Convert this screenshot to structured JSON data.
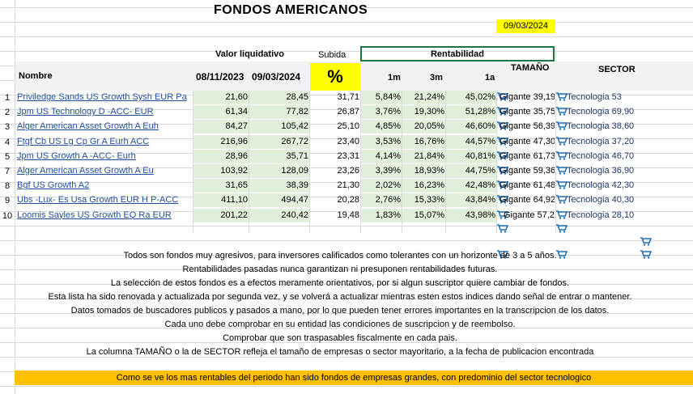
{
  "title": "FONDOS  AMERICANOS",
  "date": "09/03/2024",
  "headers": {
    "valor_liquidativo": "Valor liquidativo",
    "subida": "Subida",
    "rentabilidad": "Rentabilidad",
    "tamano": "TAMAÑO",
    "sector": "SECTOR",
    "nombre": "Nombre",
    "fecha1": "08/11/2023",
    "fecha2": "09/03/2024",
    "pct": "%",
    "m1": "1m",
    "m3": "3m",
    "a1": "1a"
  },
  "rows": [
    {
      "num": "1",
      "name": "Priviledge Sands US Growth Sysh EUR Pa",
      "v1": "21,60",
      "v2": "28,45",
      "sub": "31,71",
      "r1m": "5,84%",
      "r3m": "21,24%",
      "r1a": "45,02%",
      "tam": "Gigante 39,19",
      "sec": "Tecnologia 53"
    },
    {
      "num": "2",
      "name": "Jpm US Technology D -ACC- EUR",
      "v1": "61,34",
      "v2": "77,82",
      "sub": "26,87",
      "r1m": "3,76%",
      "r3m": "19,30%",
      "r1a": "51,28%",
      "tam": "Gigante 35,75",
      "sec": "Tecnologia 69,90"
    },
    {
      "num": "3",
      "name": "Alger American Asset Growth A Euh",
      "v1": "84,27",
      "v2": "105,42",
      "sub": "25,10",
      "r1m": "4,85%",
      "r3m": "20,05%",
      "r1a": "46,60%",
      "tam": "Gigante 56,39",
      "sec": "Tecnologia 38,60"
    },
    {
      "num": "4",
      "name": "Ftgf Cb US Lg Cp Gr A Eurh ACC",
      "v1": "216,96",
      "v2": "267,72",
      "sub": "23,40",
      "r1m": "3,53%",
      "r3m": "16,76%",
      "r1a": "44,57%",
      "tam": "Gigante 47,30",
      "sec": "Tecnologia 37,20"
    },
    {
      "num": "5",
      "name": "Jpm US Growth A -ACC- Eurh",
      "v1": "28,96",
      "v2": "35,71",
      "sub": "23,31",
      "r1m": "4,14%",
      "r3m": "21,84%",
      "r1a": "40,81%",
      "tam": "Gigante 61,73",
      "sec": "Tecnologia 46,70"
    },
    {
      "num": "7",
      "name": "Alger American Asset Growth A Eu",
      "v1": "103,92",
      "v2": "128,09",
      "sub": "23,26",
      "r1m": "3,39%",
      "r3m": "18,93%",
      "r1a": "44,75%",
      "tam": "Gigante 59,36",
      "sec": "Tecnologia 36,90"
    },
    {
      "num": "8",
      "name": "Bgf US Growth A2",
      "v1": "31,65",
      "v2": "38,39",
      "sub": "21,30",
      "r1m": "2,02%",
      "r3m": "16,23%",
      "r1a": "42,48%",
      "tam": "Gigante 61,48",
      "sec": "Tecnologia 42,30"
    },
    {
      "num": "9",
      "name": "Ubs -Lux- Es Usa Growth EUR H P-ACC",
      "v1": "411,10",
      "v2": "494,47",
      "sub": "20,28",
      "r1m": "2,76%",
      "r3m": "15,33%",
      "r1a": "43,84%",
      "tam": "Gigante 64,92",
      "sec": "Tecnologia 40,30"
    },
    {
      "num": "10",
      "name": "Loomis Sayles US Growth EQ Ra EUR",
      "v1": "201,22",
      "v2": "240,42",
      "sub": "19,48",
      "r1m": "1,83%",
      "r3m": "15,07%",
      "r1a": "43,98%",
      "tam": "Gigante 57,2",
      "sec": "Tecnologia 28,10"
    }
  ],
  "notes": [
    "Todos son fondos muy agresivos, para inversores calificados como tolerantes con un horizonte de 3 a 5 años.",
    "Rentabilidades pasadas nunca garantizan ni presuponen rentabilidades futuras.",
    "La selección de estos fondos es a efectos meramente orientativos, por si algun suscriptor quiere cambiar de fondos.",
    "Esta lista ha sido renovada y actualizada por segunda vez, y se volverá a actualizar mientras esten estos indices dando señal de entrar o mantener.",
    "Datos tomados de buscadores publicos y pasados a mano, por lo que pueden tener errores importantes en la transcripcion de los datos.",
    "Cada uno debe comprobar en su entidad las condiciones de suscripcion y de reembolso.",
    "Comprobar que son traspasables fiscalmente en cada pais.",
    "La columna TAMAÑO o la de SECTOR refleja el tamaño de empresas o sector mayoritario, a la fecha de publicacion encontrada"
  ],
  "banner": "Como se ve los mas rentables del periodo han sido fondos de empresas grandes, con predominio del sector tecnologico",
  "icons": {
    "cart": "shopping-cart-icon"
  }
}
